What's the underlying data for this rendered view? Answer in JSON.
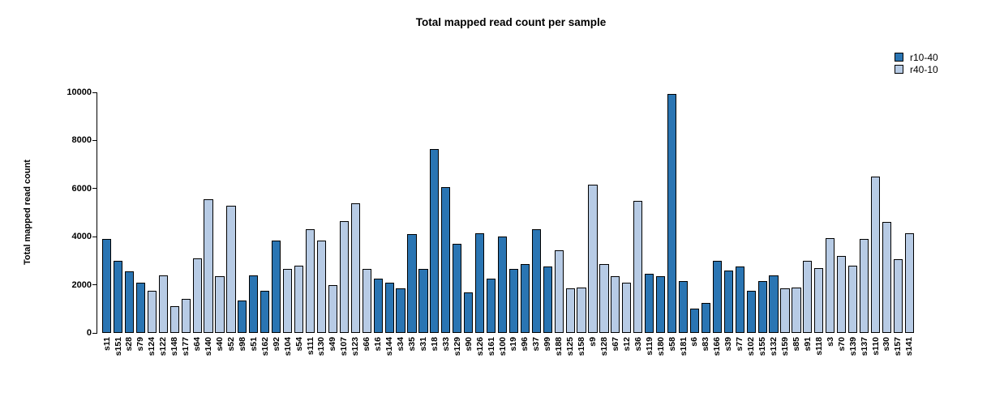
{
  "chart_data": {
    "type": "bar",
    "title": "Total mapped read count per sample",
    "xlabel": "",
    "ylabel": "Total mapped read count",
    "ylim": [
      0,
      10000
    ],
    "yticks": [
      0,
      2000,
      4000,
      6000,
      8000,
      10000
    ],
    "grid": false,
    "legend_position": "top-right",
    "legend": [
      {
        "name": "r10-40",
        "color": "#2a75b3"
      },
      {
        "name": "r40-10",
        "color": "#b7cbe5"
      }
    ],
    "bar_border_color": "#000000",
    "categories": [
      "s11",
      "s151",
      "s28",
      "s79",
      "s124",
      "s122",
      "s148",
      "s177",
      "s64",
      "s140",
      "s40",
      "s52",
      "s98",
      "s51",
      "s162",
      "s92",
      "s104",
      "s54",
      "s111",
      "s130",
      "s49",
      "s107",
      "s123",
      "s66",
      "s16",
      "s144",
      "s34",
      "s35",
      "s31",
      "s18",
      "s33",
      "s129",
      "s90",
      "s126",
      "s161",
      "s100",
      "s19",
      "s96",
      "s37",
      "s99",
      "s188",
      "s125",
      "s158",
      "s9",
      "s128",
      "s67",
      "s12",
      "s36",
      "s119",
      "s180",
      "s58",
      "s181",
      "s6",
      "s83",
      "s166",
      "s39",
      "s77",
      "s102",
      "s155",
      "s132",
      "s159",
      "s85",
      "s91",
      "s118",
      "s3",
      "s70",
      "s139",
      "s137",
      "s110",
      "s30",
      "s157",
      "s141"
    ],
    "values": [
      3900,
      3000,
      2550,
      2100,
      1750,
      2400,
      1100,
      1400,
      3100,
      5550,
      2350,
      5300,
      1350,
      2400,
      1750,
      3850,
      2650,
      2800,
      4300,
      3850,
      2000,
      4650,
      5400,
      2650,
      2250,
      2100,
      1850,
      4100,
      2650,
      7650,
      6050,
      3700,
      1700,
      4150,
      2250,
      4000,
      2650,
      2850,
      4300,
      2750,
      3450,
      1850,
      1900,
      6150,
      2850,
      2350,
      2100,
      5500,
      2450,
      2350,
      9950,
      2150,
      1000,
      1250,
      3000,
      2600,
      2750,
      1750,
      2150,
      2400,
      1850,
      1900,
      3000,
      2700,
      3950,
      3200,
      2800,
      3900,
      6500,
      4600,
      3050,
      4150
    ],
    "groups": [
      "r10-40",
      "r10-40",
      "r10-40",
      "r10-40",
      "r40-10",
      "r40-10",
      "r40-10",
      "r40-10",
      "r40-10",
      "r40-10",
      "r40-10",
      "r40-10",
      "r10-40",
      "r10-40",
      "r10-40",
      "r10-40",
      "r40-10",
      "r40-10",
      "r40-10",
      "r40-10",
      "r40-10",
      "r40-10",
      "r40-10",
      "r40-10",
      "r10-40",
      "r10-40",
      "r10-40",
      "r10-40",
      "r10-40",
      "r10-40",
      "r10-40",
      "r10-40",
      "r10-40",
      "r10-40",
      "r10-40",
      "r10-40",
      "r10-40",
      "r10-40",
      "r10-40",
      "r10-40",
      "r40-10",
      "r40-10",
      "r40-10",
      "r40-10",
      "r40-10",
      "r40-10",
      "r40-10",
      "r40-10",
      "r10-40",
      "r10-40",
      "r10-40",
      "r10-40",
      "r10-40",
      "r10-40",
      "r10-40",
      "r10-40",
      "r10-40",
      "r10-40",
      "r10-40",
      "r10-40",
      "r40-10",
      "r40-10",
      "r40-10",
      "r40-10",
      "r40-10",
      "r40-10",
      "r40-10",
      "r40-10",
      "r40-10",
      "r40-10",
      "r40-10",
      "r40-10"
    ]
  }
}
